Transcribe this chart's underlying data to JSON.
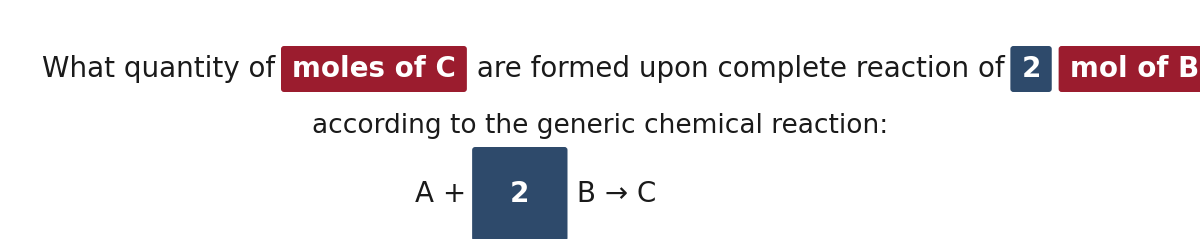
{
  "bg_color": "#ffffff",
  "text_color": "#1a1a1a",
  "red_box_color": "#9b1c2e",
  "blue_box_color": "#2e4a6b",
  "line1_parts": [
    {
      "text": "What quantity of ",
      "style": "normal"
    },
    {
      "text": "moles of C",
      "style": "box_red"
    },
    {
      "text": " are formed upon complete reaction of ",
      "style": "normal"
    },
    {
      "text": "2",
      "style": "box_blue"
    },
    {
      "text": " ",
      "style": "normal"
    },
    {
      "text": "mol of B",
      "style": "box_red"
    }
  ],
  "line2": "according to the generic chemical reaction:",
  "line3_parts": [
    {
      "text": "A + ",
      "style": "normal"
    },
    {
      "text": "2",
      "style": "box_blue_large"
    },
    {
      "text": " B → C",
      "style": "normal"
    }
  ],
  "fontsize": 20,
  "fontsize2": 19,
  "figsize": [
    12.0,
    2.39
  ],
  "dpi": 100
}
